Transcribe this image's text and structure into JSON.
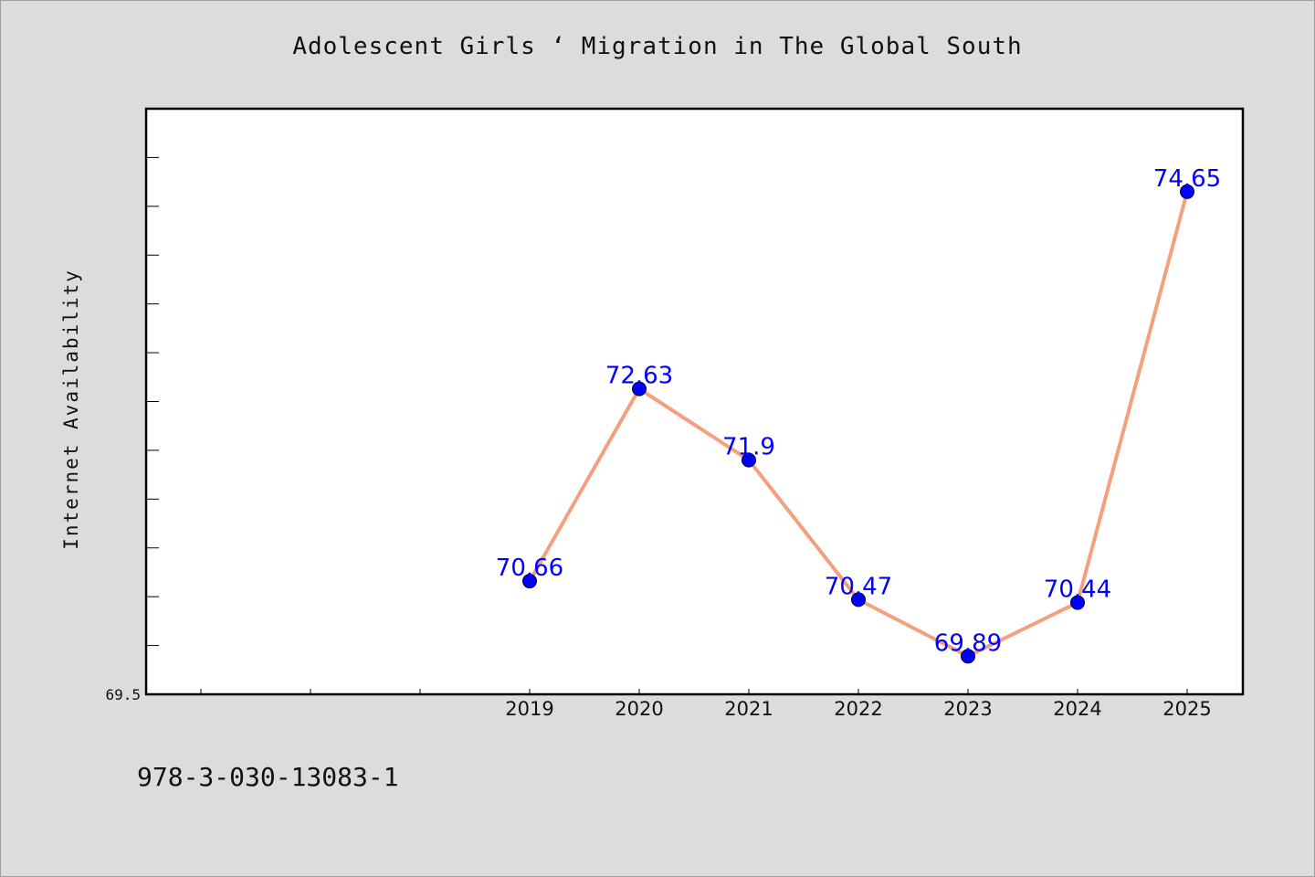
{
  "chart_data": {
    "type": "line",
    "title": "Adolescent Girls ‘ Migration in The Global South",
    "xlabel": "",
    "ylabel": "Internet Availability",
    "categories": [
      "2019",
      "2020",
      "2021",
      "2022",
      "2023",
      "2024",
      "2025"
    ],
    "series": [
      {
        "values": [
          70.66,
          72.63,
          71.9,
          70.47,
          69.89,
          70.44,
          74.65
        ],
        "line_color": "#f4a07e",
        "marker_color": "#0000ff"
      }
    ],
    "data_labels": [
      "70.66",
      "72.63",
      "71.9",
      "70.47",
      "69.89",
      "70.44",
      "74.65"
    ],
    "y_tick_labels": [
      "69.5"
    ],
    "ylim": [
      69.5,
      75.5
    ],
    "grid": false,
    "legend": "none"
  },
  "footer": {
    "isbn": "978-3-030-13083-1"
  }
}
